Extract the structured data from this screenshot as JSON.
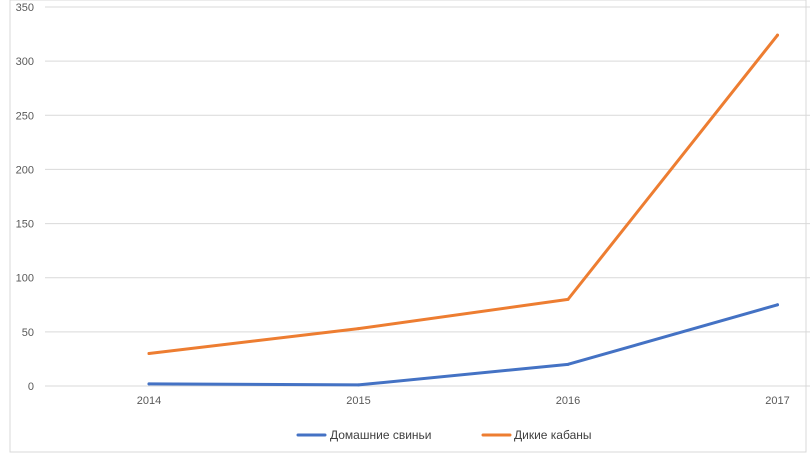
{
  "chart_data": {
    "type": "line",
    "title": "",
    "xlabel": "",
    "ylabel": "",
    "categories": [
      "2014",
      "2015",
      "2016",
      "2017"
    ],
    "ylim": [
      0,
      350
    ],
    "yticks": [
      0,
      50,
      100,
      150,
      200,
      250,
      300,
      350
    ],
    "grid": true,
    "legend_position": "bottom",
    "series": [
      {
        "name": "Домашние свиньи",
        "color": "#4472c4",
        "values": [
          2,
          1,
          20,
          75
        ]
      },
      {
        "name": "Дикие кабаны",
        "color": "#ed7d31",
        "values": [
          30,
          53,
          80,
          324
        ]
      }
    ]
  }
}
